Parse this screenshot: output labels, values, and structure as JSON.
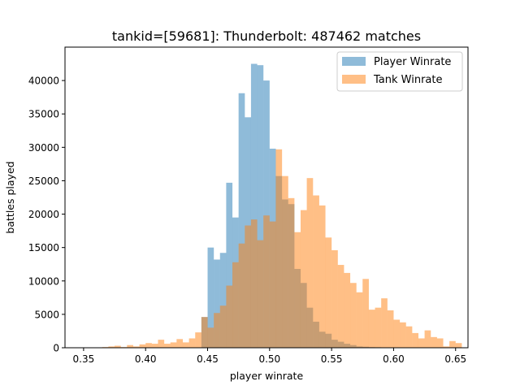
{
  "chart_data": {
    "type": "bar",
    "title": "tankid=[59681]: Thunderbolt: 487462 matches",
    "xlabel": "player winrate",
    "ylabel": "battles played",
    "xlim": [
      0.335,
      0.66
    ],
    "ylim": [
      0,
      45000
    ],
    "xticks": [
      "0.35",
      "0.40",
      "0.45",
      "0.50",
      "0.55",
      "0.60",
      "0.65"
    ],
    "yticks": [
      "0",
      "5000",
      "10000",
      "15000",
      "20000",
      "25000",
      "30000",
      "35000",
      "40000"
    ],
    "legend_position": "top-right",
    "bin_start": 0.35,
    "bin_width": 0.005,
    "series": [
      {
        "name": "Player Winrate",
        "color": "#1f77b4",
        "opacity": 0.5,
        "values": [
          0,
          0,
          0,
          0,
          0,
          0,
          0,
          0,
          0,
          0,
          0,
          0,
          0,
          0,
          0,
          0,
          0,
          0,
          0,
          4600,
          15000,
          13200,
          14200,
          24700,
          19500,
          38100,
          34500,
          42500,
          42300,
          40000,
          29800,
          25700,
          22200,
          21500,
          11800,
          9700,
          6000,
          3900,
          2400,
          2100,
          1200,
          900,
          600,
          400,
          200,
          150,
          100,
          80,
          50,
          30,
          20,
          0,
          0,
          0,
          0,
          0,
          0,
          0,
          0,
          0,
          0
        ]
      },
      {
        "name": "Tank Winrate",
        "color": "#ff7f0e",
        "opacity": 0.5,
        "values": [
          0,
          0,
          0,
          100,
          200,
          300,
          100,
          400,
          200,
          500,
          700,
          600,
          1200,
          600,
          800,
          1300,
          800,
          1400,
          2300,
          4600,
          3000,
          5200,
          6300,
          9300,
          12800,
          15600,
          18300,
          19200,
          16100,
          19800,
          18900,
          29700,
          25700,
          22400,
          17300,
          20600,
          25400,
          22800,
          21300,
          16500,
          14600,
          12400,
          11200,
          9700,
          8300,
          10300,
          5700,
          6000,
          7400,
          5600,
          4200,
          3800,
          3200,
          2200,
          1400,
          2600,
          1600,
          1400,
          200,
          1000,
          700
        ]
      }
    ]
  }
}
